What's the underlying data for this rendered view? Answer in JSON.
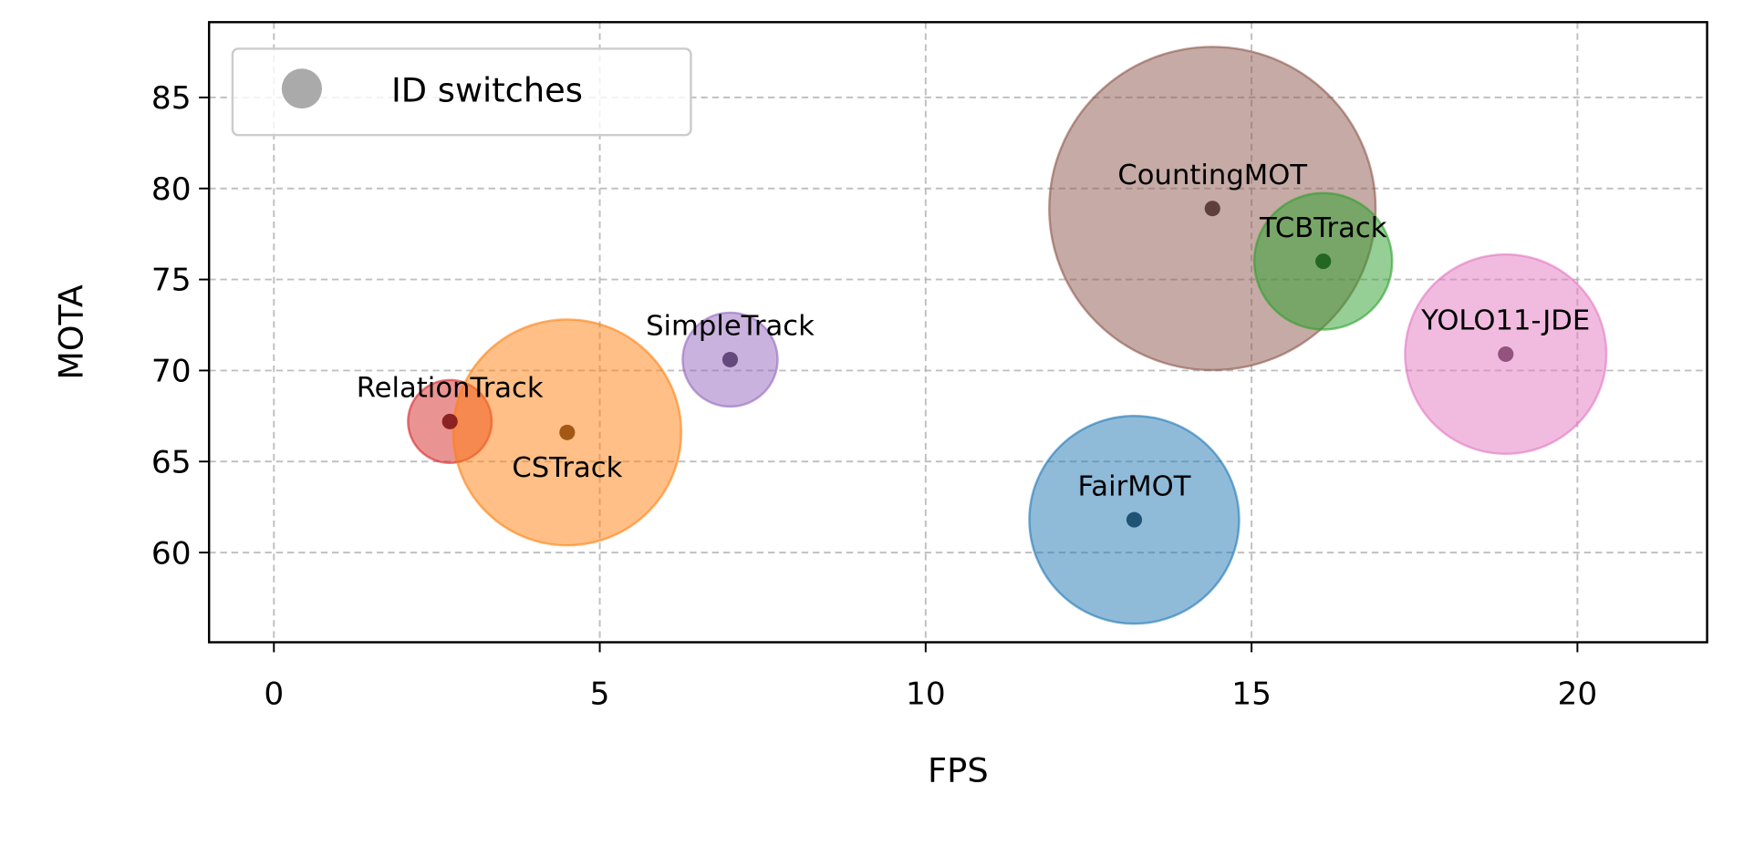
{
  "chart_data": {
    "type": "scatter",
    "title": "",
    "xlabel": "FPS",
    "ylabel": "MOTA",
    "xlim": [
      -1,
      22
    ],
    "ylim": [
      55,
      89
    ],
    "xticks": [
      0,
      5,
      10,
      15,
      20
    ],
    "yticks": [
      60,
      65,
      70,
      75,
      80,
      85
    ],
    "grid": true,
    "legend": {
      "position": "top-left",
      "entries": [
        "ID switches"
      ],
      "color": "#aaaaaa"
    },
    "size_note": "bubble area proportional to ID switches (relative units)",
    "points": [
      {
        "name": "RelationTrack",
        "fps": 2.7,
        "mota": 67.2,
        "size": 14,
        "color": "#d62728",
        "label_pos": "above"
      },
      {
        "name": "CSTrack",
        "fps": 4.5,
        "mota": 66.6,
        "size": 104,
        "color": "#ff7f0e",
        "label_pos": "below"
      },
      {
        "name": "SimpleTrack",
        "fps": 7.0,
        "mota": 70.6,
        "size": 18,
        "color": "#9467bd",
        "label_pos": "above"
      },
      {
        "name": "CountingMOT",
        "fps": 14.4,
        "mota": 78.9,
        "size": 213,
        "color": "#8c564b",
        "label_pos": "above"
      },
      {
        "name": "TCBTrack",
        "fps": 16.1,
        "mota": 76.0,
        "size": 38,
        "color": "#2ca02c",
        "label_pos": "above"
      },
      {
        "name": "YOLO11-JDE",
        "fps": 18.9,
        "mota": 70.9,
        "size": 81,
        "color": "#e377c2",
        "label_pos": "above"
      },
      {
        "name": "FairMOT",
        "fps": 13.2,
        "mota": 61.8,
        "size": 88,
        "color": "#1f77b4",
        "label_pos": "above"
      }
    ]
  }
}
